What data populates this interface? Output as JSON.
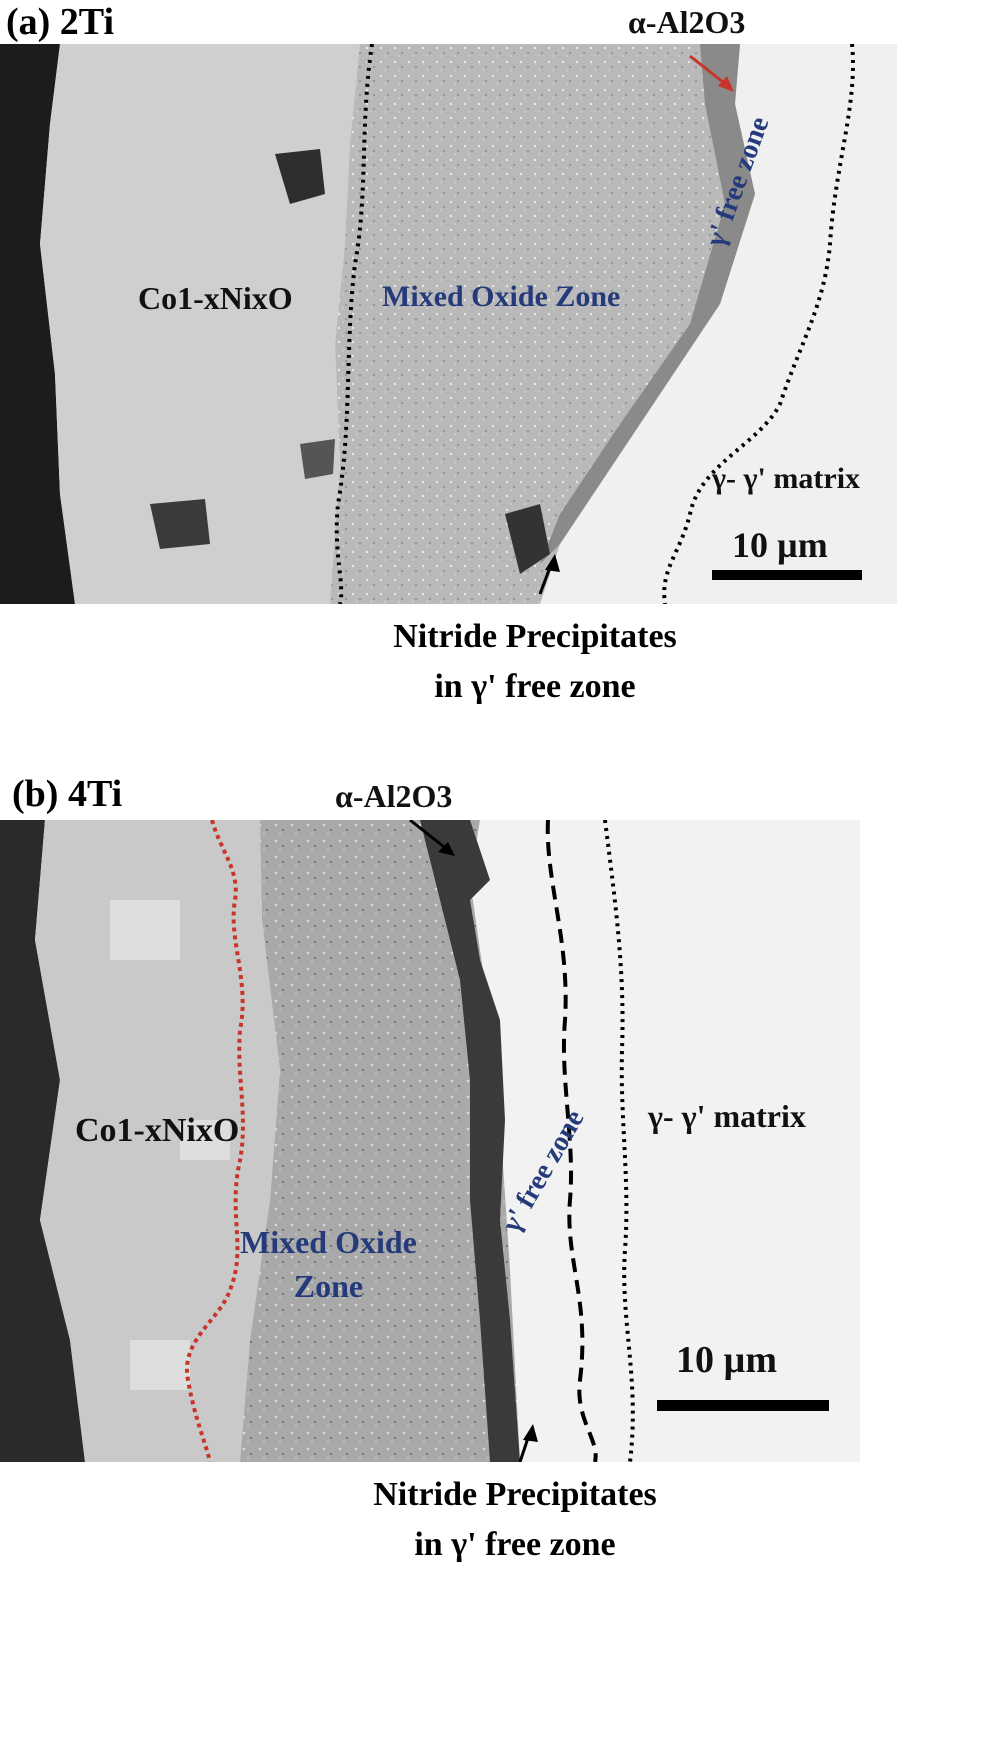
{
  "panel_a": {
    "label": "(a) 2Ti",
    "labels": {
      "alpha_al2o3": "α-Al2O3",
      "oxide": "Co1-xNixO",
      "mixed_zone": "Mixed Oxide Zone",
      "gamma_free": "γ' free zone",
      "matrix": "γ- γ' matrix",
      "scale": "10 µm"
    },
    "caption_line1": "Nitride Precipitates",
    "caption_line2": "in γ' free zone"
  },
  "panel_b": {
    "label": "(b) 4Ti",
    "labels": {
      "alpha_al2o3": "α-Al2O3",
      "oxide": "Co1-xNixO",
      "mixed_zone_line1": "Mixed Oxide",
      "mixed_zone_line2": "Zone",
      "gamma_free": "γ' free zone",
      "matrix": "γ- γ' matrix",
      "scale": "10 µm"
    },
    "caption_line1": "Nitride Precipitates",
    "caption_line2": "in γ' free zone"
  },
  "colors": {
    "label_blue": "#253a7a",
    "arrow_red": "#c8342b",
    "boundary_red": "#c8342b"
  }
}
